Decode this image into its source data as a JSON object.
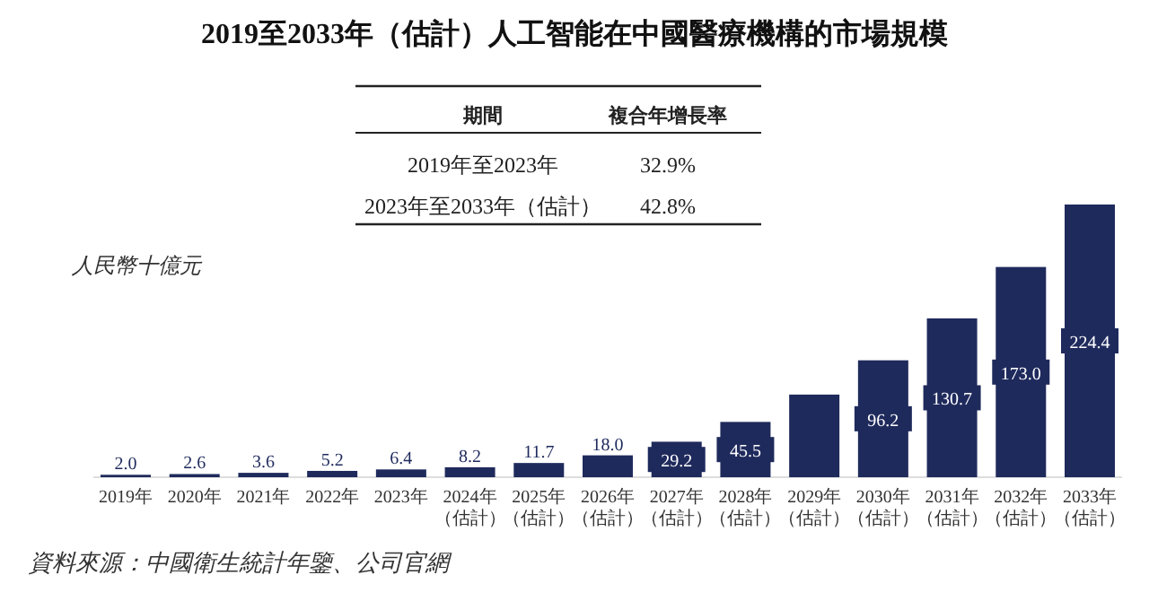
{
  "chart_data": {
    "type": "bar",
    "title": "2019至2033年（估計）人工智能在中國醫療機構的市場規模",
    "ylabel": "人民幣十億元",
    "categories": [
      "2019年",
      "2020年",
      "2021年",
      "2022年",
      "2023年",
      "2024年（估計）",
      "2025年（估計）",
      "2026年（估計）",
      "2027年（估計）",
      "2028年（估計）",
      "2029年（估計）",
      "2030年（估計）",
      "2031年（估計）",
      "2032年（估計）",
      "2033年（估計）"
    ],
    "values": [
      2.0,
      2.6,
      3.6,
      5.2,
      6.4,
      8.2,
      11.7,
      18.0,
      29.2,
      45.5,
      68,
      96.2,
      130.7,
      173.0,
      224.4
    ],
    "value_labels": [
      "2.0",
      "2.6",
      "3.6",
      "5.2",
      "6.4",
      "8.2",
      "11.7",
      "18.0",
      "29.2",
      "45.5",
      null,
      "96.2",
      "130.7",
      "173.0",
      "224.4"
    ],
    "color": "#1f2a5c",
    "annotations": [
      "期間",
      "複合年增長率",
      "2019年至2023年",
      "32.9%",
      "2023年至2033年（估計）",
      "42.8%",
      "資料來源：中國衛生統計年鑒、公司官網"
    ]
  }
}
